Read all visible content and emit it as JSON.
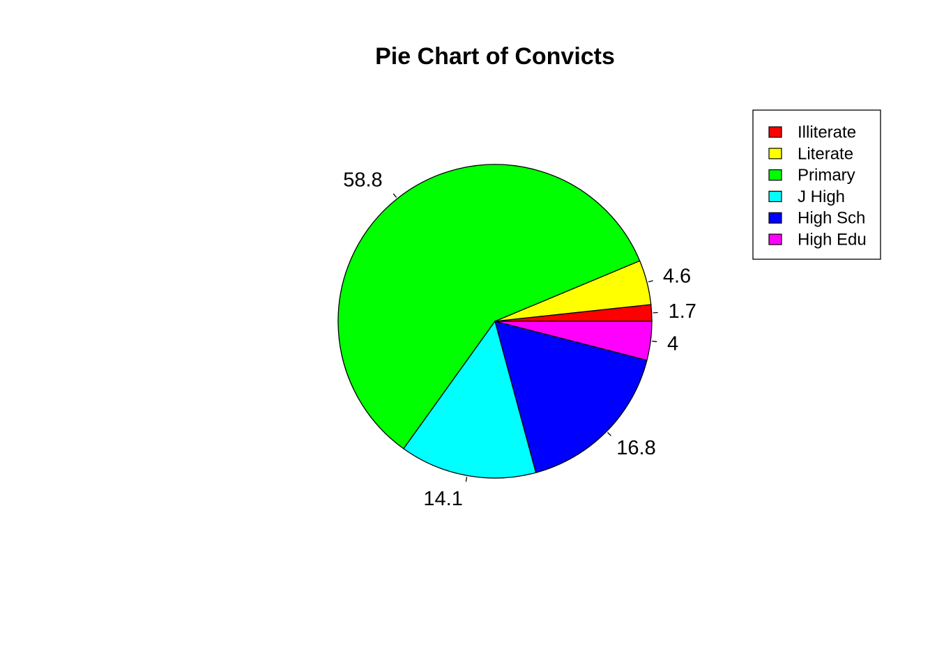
{
  "chart_data": {
    "type": "pie",
    "title": "Pie Chart of Convicts",
    "start_angle_degrees": 0,
    "direction": "counterclockwise",
    "legend_position": "top-right",
    "slices": [
      {
        "name": "Illiterate",
        "value": 1.7,
        "label": "1.7",
        "color": "#FF0000"
      },
      {
        "name": "Literate",
        "value": 4.6,
        "label": "4.6",
        "color": "#FFFF00"
      },
      {
        "name": "Primary",
        "value": 58.8,
        "label": "58.8",
        "color": "#00FF00"
      },
      {
        "name": "J High",
        "value": 14.1,
        "label": "14.1",
        "color": "#00FFFF"
      },
      {
        "name": "High Sch",
        "value": 16.8,
        "label": "16.8",
        "color": "#0000FF"
      },
      {
        "name": "High Edu",
        "value": 4,
        "label": "4",
        "color": "#FF00FF"
      }
    ]
  }
}
